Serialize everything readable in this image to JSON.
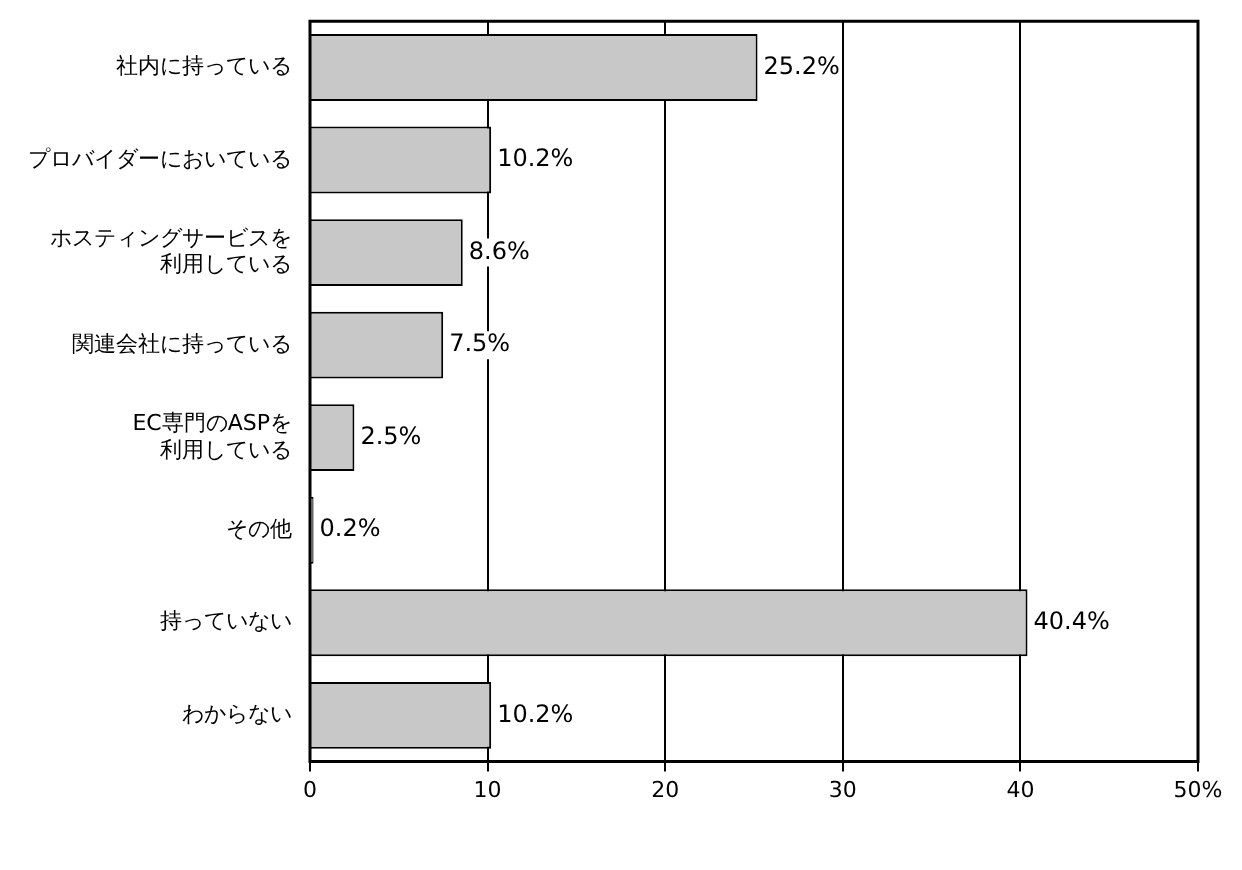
{
  "chart_data": {
    "type": "bar",
    "orientation": "horizontal",
    "categories": [
      "社内に持っている",
      "プロバイダーにおいている",
      "ホスティングサービスを利用している",
      "関連会社に持っている",
      "EC専門のASPを利用している",
      "その他",
      "持っていない",
      "わからない"
    ],
    "values": [
      25.2,
      10.2,
      8.6,
      7.5,
      2.5,
      0.2,
      40.4,
      10.2
    ],
    "value_labels": [
      "25.2%",
      "10.2%",
      "8.6%",
      "7.5%",
      "2.5%",
      "0.2%",
      "40.4%",
      "10.2%"
    ],
    "color": "#c8c8c8",
    "xlim": [
      0,
      50
    ],
    "xticks": [
      0,
      10,
      20,
      30,
      40,
      {
        "value": 50,
        "label": "50%"
      }
    ],
    "grid": "x",
    "legend": false
  }
}
